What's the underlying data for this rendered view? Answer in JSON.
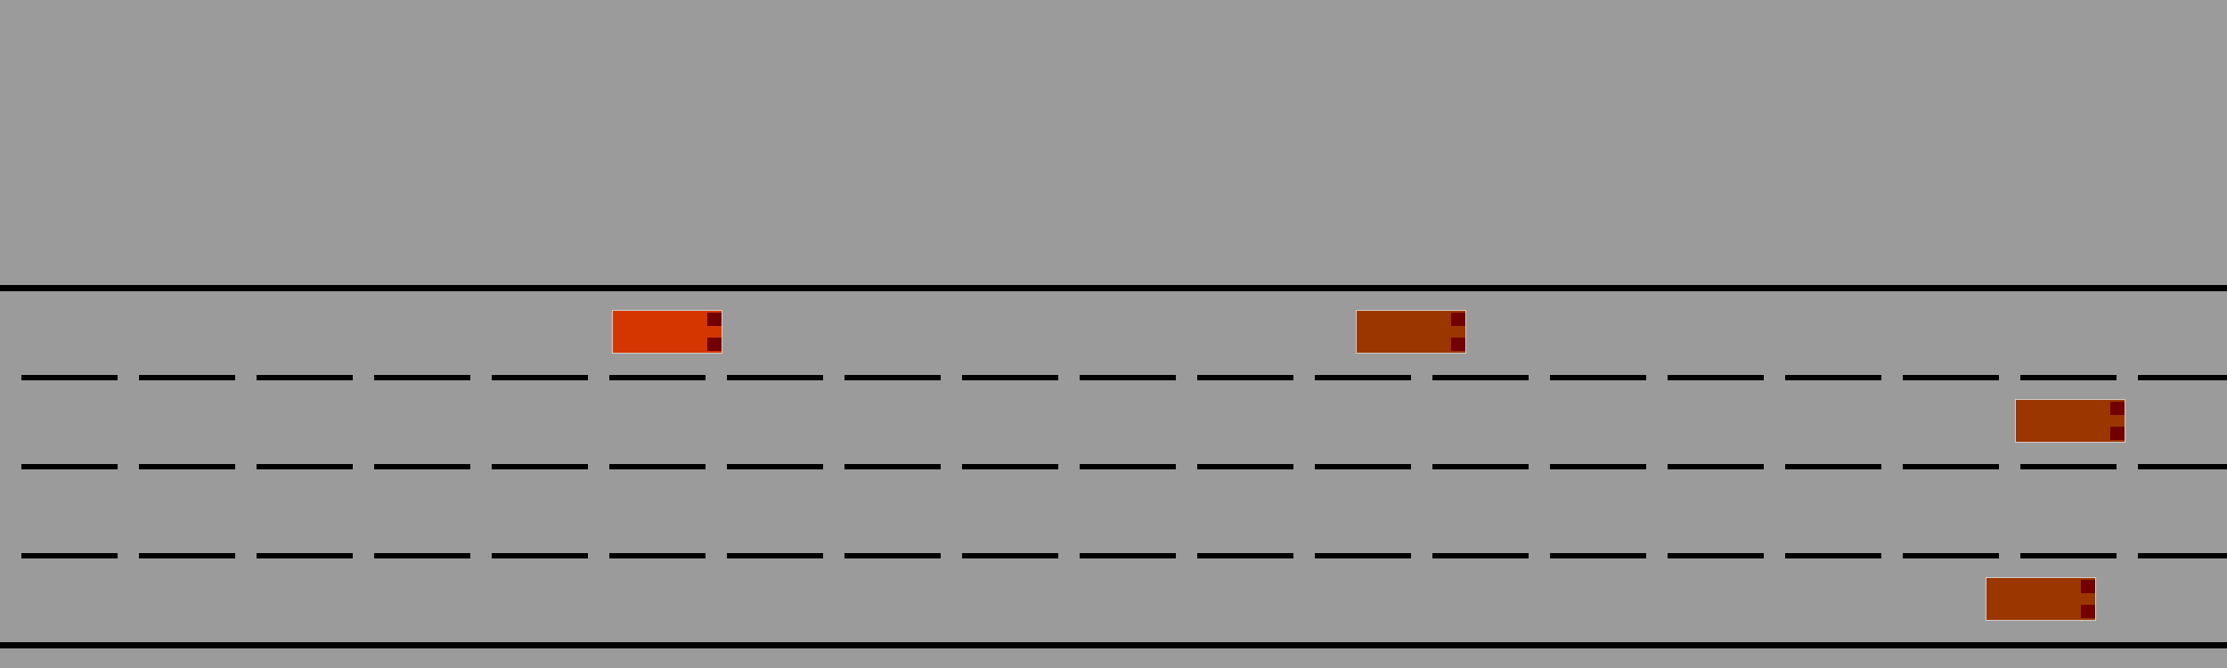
{
  "colors": {
    "background": "#9b9b9b",
    "road_edge": "#000000",
    "lane_divider": "#000000",
    "player_car": "#d53600",
    "traffic_car": "#9b3600",
    "tail_light": "#720000"
  },
  "road": {
    "lane_count": 4
  },
  "cars": [
    {
      "role": "player",
      "lane": 1
    },
    {
      "role": "traffic",
      "lane": 1
    },
    {
      "role": "traffic",
      "lane": 2
    },
    {
      "role": "traffic",
      "lane": 4
    }
  ]
}
